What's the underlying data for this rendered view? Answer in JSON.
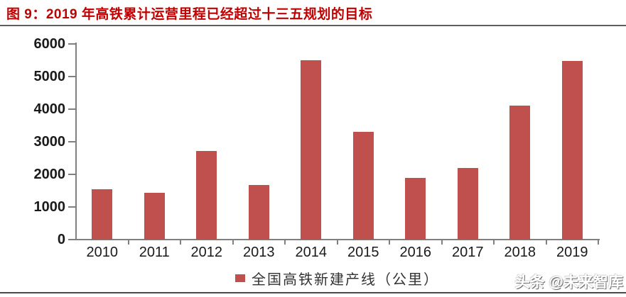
{
  "figure": {
    "title": "图 9：2019 年高铁累计运营里程已经超过十三五规划的目标",
    "watermark": "头条 @未来智库"
  },
  "chart_data": {
    "type": "bar",
    "title": "图 9：2019 年高铁累计运营里程已经超过十三五规划的目标",
    "categories": [
      "2010",
      "2011",
      "2012",
      "2013",
      "2014",
      "2015",
      "2016",
      "2017",
      "2018",
      "2019"
    ],
    "series": [
      {
        "name": "全国高铁新建产线（公里）",
        "values": [
          1550,
          1430,
          2720,
          1670,
          5490,
          3310,
          1900,
          2190,
          4100,
          5470
        ]
      }
    ],
    "xlabel": "",
    "ylabel": "",
    "ylim": [
      0,
      6000
    ],
    "y_ticks": [
      0,
      1000,
      2000,
      3000,
      4000,
      5000,
      6000
    ],
    "grid": false,
    "legend_position": "bottom",
    "bar_color": "#C0504D"
  },
  "colors": {
    "title_red": "#C00000",
    "bar_red": "#C0504D",
    "axis_gray": "#808080",
    "rule_dark": "#4A4A4A"
  }
}
